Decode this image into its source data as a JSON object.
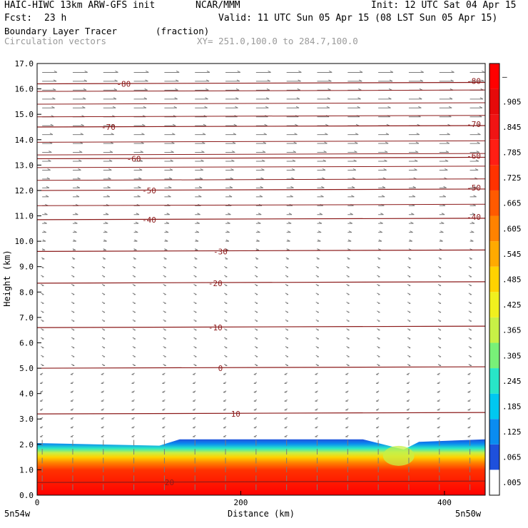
{
  "header": {
    "model": "HAIC-HIWC 13km ARW-GFS init",
    "org": "NCAR/MMM",
    "init": "Init: 12 UTC Sat 04 Apr 15",
    "fcst_label": "Fcst:",
    "fcst_value": "23 h",
    "valid": "Valid: 11 UTC Sun 05 Apr 15 (08 LST Sun 05 Apr 15)",
    "field": "Boundary Layer Tracer",
    "field_units": "(fraction)",
    "overlay": "Circulation vectors",
    "xsection": "XY= 251.0,100.0 to 284.7,100.0"
  },
  "colors": {
    "isotherm": "#8b1a1a",
    "vector": "#7a7a7a",
    "colorbar": [
      "#ffffff",
      "#1e50dc",
      "#0a8cf0",
      "#00c8f0",
      "#28e6c8",
      "#78f078",
      "#c8f046",
      "#f0f01e",
      "#ffd200",
      "#ffaa00",
      "#ff8200",
      "#ff5a00",
      "#ff3200",
      "#ff1e14",
      "#f01414",
      "#e60a0a",
      "#ff0000"
    ]
  },
  "colorbar_labels": [
    ".005",
    ".065",
    ".125",
    ".185",
    ".245",
    ".305",
    ".365",
    ".425",
    ".485",
    ".545",
    ".605",
    ".665",
    ".725",
    ".785",
    ".845",
    ".905",
    "–"
  ],
  "chart_data": {
    "type": "heatmap",
    "ylabel": "Height (km)",
    "xlabel": "Distance (km)",
    "x_ticks": [
      "0",
      "200",
      "400"
    ],
    "x_tick_values": [
      0,
      200,
      400
    ],
    "x_end_labels": [
      "5n54w",
      "5n50w"
    ],
    "xlim": [
      0,
      440
    ],
    "ylim": [
      0,
      17
    ],
    "y_ticks": [
      "0.0",
      "1.0",
      "2.0",
      "3.0",
      "4.0",
      "5.0",
      "6.0",
      "7.0",
      "8.0",
      "9.0",
      "10.0",
      "11.0",
      "12.0",
      "13.0",
      "14.0",
      "15.0",
      "16.0",
      "17.0"
    ],
    "y_tick_values": [
      0,
      1,
      2,
      3,
      4,
      5,
      6,
      7,
      8,
      9,
      10,
      11,
      12,
      13,
      14,
      15,
      16,
      17
    ],
    "isotherms": [
      {
        "label": "20",
        "height_km": 0.5,
        "left_label": false,
        "mid_x": 130
      },
      {
        "label": "10",
        "height_km": 3.2,
        "left_label": false,
        "mid_x": 195
      },
      {
        "label": "0",
        "height_km": 5.0,
        "left_label": false,
        "mid_x": 180
      },
      {
        "label": "-10",
        "height_km": 6.6,
        "left_label": false,
        "mid_x": 175
      },
      {
        "label": "-20",
        "height_km": 8.35,
        "left_label": false,
        "mid_x": 175
      },
      {
        "label": "-30",
        "height_km": 9.6,
        "left_label": false,
        "mid_x": 180
      },
      {
        "label": "-40",
        "height_km": 10.85,
        "left_label": true,
        "mid_x": 110
      },
      {
        "label": "-50",
        "height_km": 12.0,
        "left_label": true,
        "mid_x": 110
      },
      {
        "label": "-60",
        "height_km": 13.25,
        "left_label": true,
        "mid_x": 95
      },
      {
        "label": "-70",
        "height_km": 14.5,
        "left_label": true,
        "mid_x": 70
      },
      {
        "label": "-80",
        "height_km": 16.2,
        "left_label": true,
        "mid_x": 85
      }
    ],
    "boundary_layer_tracer": {
      "description_levels": [
        0.005,
        0.065,
        0.125,
        0.185,
        0.245,
        0.305,
        0.365,
        0.425,
        0.485,
        0.545,
        0.605,
        0.665,
        0.725,
        0.785,
        0.845,
        0.905
      ],
      "top_profile_km": [
        [
          0,
          2.05
        ],
        [
          120,
          1.95
        ],
        [
          140,
          2.2
        ],
        [
          320,
          2.2
        ],
        [
          345,
          1.95
        ],
        [
          360,
          1.8
        ],
        [
          375,
          2.1
        ],
        [
          440,
          2.2
        ]
      ]
    }
  }
}
